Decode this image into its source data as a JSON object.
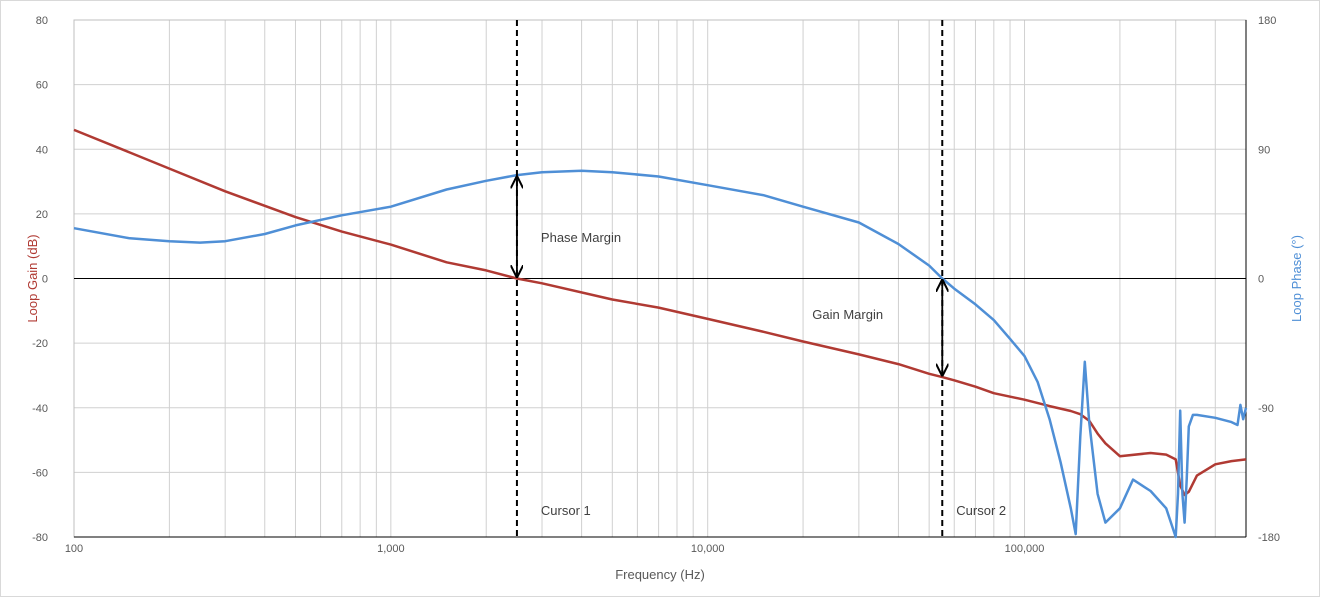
{
  "chart_data": {
    "type": "line",
    "xlabel": "Frequency (Hz)",
    "ylabel": "Loop Gain (dB)",
    "y2label": "Loop Phase (°)",
    "x_scale": "log",
    "xlim": [
      100,
      500000
    ],
    "ylim": [
      -80,
      80
    ],
    "y2lim": [
      -180,
      180
    ],
    "x_ticks": [
      100,
      1000,
      10000,
      100000
    ],
    "x_tick_labels": [
      "100",
      "1,000",
      "10,000",
      "100,000"
    ],
    "y_ticks": [
      -80,
      -60,
      -40,
      -20,
      0,
      20,
      40,
      60,
      80
    ],
    "y_tick_labels": [
      "-80",
      "-60",
      "-40",
      "-20",
      "0",
      "20",
      "40",
      "60",
      "80"
    ],
    "y2_ticks": [
      -180,
      -90,
      0,
      90,
      180
    ],
    "y2_tick_labels": [
      "-180",
      "-90",
      "0",
      "90",
      "180"
    ],
    "grid": true,
    "colors": {
      "gain": "#b03a33",
      "phase": "#4f8fd6",
      "cursor": "#000000",
      "grid": "#d0d0d0"
    },
    "series": [
      {
        "axis": "left",
        "x": [
          100,
          150,
          200,
          300,
          500,
          700,
          1000,
          1500,
          2000,
          2500,
          3000,
          5000,
          7000,
          10000,
          15000,
          20000,
          30000,
          40000,
          50000,
          55000,
          60000,
          70000,
          80000,
          100000,
          120000,
          140000,
          150000,
          160000,
          170000,
          180000,
          200000,
          250000,
          280000,
          300000,
          310000,
          320000,
          330000,
          350000,
          400000,
          450000,
          500000
        ],
        "values": [
          46,
          39,
          34,
          27,
          19,
          14.5,
          10.5,
          5,
          2.5,
          0,
          -1.5,
          -6.5,
          -9,
          -12.5,
          -16.5,
          -19.5,
          -23.5,
          -26.5,
          -29.5,
          -30.5,
          -31.5,
          -33.5,
          -35.5,
          -37.5,
          -39.5,
          -41,
          -42,
          -44,
          -48,
          -51,
          -55,
          -54,
          -54.5,
          -56,
          -64,
          -67,
          -66,
          -61,
          -57.5,
          -56.5,
          -56
        ]
      },
      {
        "axis": "right",
        "x": [
          100,
          150,
          200,
          250,
          300,
          400,
          500,
          700,
          1000,
          1500,
          2000,
          2500,
          3000,
          4000,
          5000,
          7000,
          10000,
          15000,
          20000,
          30000,
          40000,
          50000,
          55000,
          60000,
          70000,
          80000,
          90000,
          100000,
          110000,
          120000,
          130000,
          140000,
          145000,
          150000,
          155000,
          160000,
          170000,
          180000,
          200000,
          220000,
          250000,
          280000,
          300000,
          305000,
          310000,
          315000,
          320000,
          325000,
          330000,
          340000,
          350000,
          400000,
          450000,
          470000,
          480000,
          490000,
          500000
        ],
        "values": [
          35,
          28,
          26,
          25,
          26,
          31,
          37,
          44,
          50,
          62,
          68,
          72,
          74,
          75,
          74,
          71,
          65,
          58,
          50,
          39,
          24,
          9,
          0,
          -7,
          -18,
          -29,
          -42,
          -54,
          -72,
          -98,
          -128,
          -160,
          -178,
          -110,
          -58,
          -100,
          -150,
          -170,
          -160,
          -140,
          -148,
          -160,
          -190,
          -150,
          -92,
          -150,
          -170,
          -140,
          -103,
          -95,
          -95,
          -97,
          -100,
          -102,
          -88,
          -98,
          -90
        ]
      }
    ],
    "annotations": {
      "phase_margin": "Phase Margin",
      "gain_margin": "Gain Margin",
      "cursor1": "Cursor 1",
      "cursor2": "Cursor 2"
    },
    "cursors": [
      2500,
      55000
    ],
    "phase_margin_deg": 72,
    "gain_margin_db": -30.5
  }
}
